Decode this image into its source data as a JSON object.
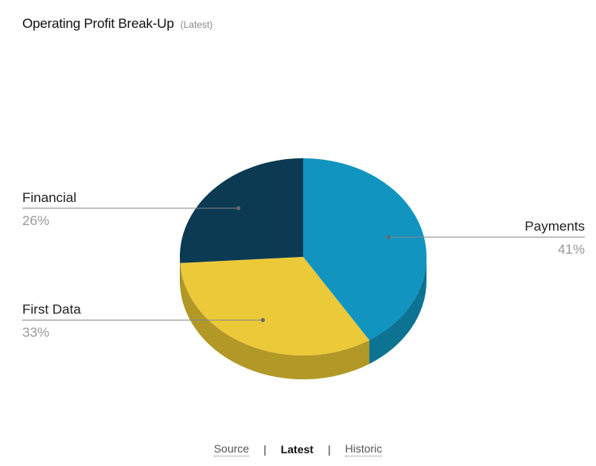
{
  "header": {
    "title": "Operating Profit Break-Up",
    "subtitle": "(Latest)"
  },
  "chart_data": {
    "type": "pie",
    "style": "3d",
    "slices": [
      {
        "label": "Payments",
        "value": 41,
        "display": "41%",
        "color": "#1195c0",
        "side": "#0d7393"
      },
      {
        "label": "First Data",
        "value": 33,
        "display": "33%",
        "color": "#ebc938",
        "side": "#b29826"
      },
      {
        "label": "Financial",
        "value": 26,
        "display": "26%",
        "color": "#0b3a52",
        "side": "#08293a"
      }
    ]
  },
  "footer": {
    "links": [
      "Source",
      "Latest",
      "Historic"
    ],
    "separator": "|"
  }
}
